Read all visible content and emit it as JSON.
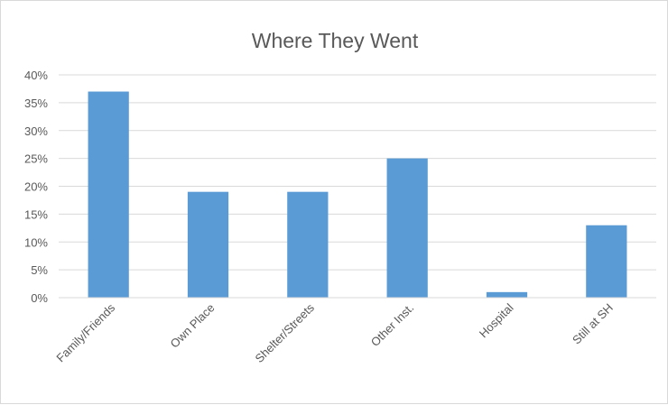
{
  "chart_data": {
    "type": "bar",
    "title": "Where They Went",
    "categories": [
      "Family/Friends",
      "Own Place",
      "Shelter/Streets",
      "Other Inst.",
      "Hospital",
      "Still at SH"
    ],
    "series": [
      {
        "values": [
          0.37,
          0.19,
          0.19,
          0.25,
          0.01,
          0.13
        ]
      }
    ],
    "ylim": [
      0,
      0.4
    ],
    "yticks": [
      "0%",
      "5%",
      "10%",
      "15%",
      "20%",
      "25%",
      "30%",
      "35%",
      "40%"
    ],
    "grid": true,
    "legend": "none",
    "xlabel": "",
    "ylabel": "",
    "colors": {
      "bar": "#5b9bd5",
      "grid": "#d9d9d9",
      "text": "#595959",
      "border": "#d9d9d9"
    }
  }
}
